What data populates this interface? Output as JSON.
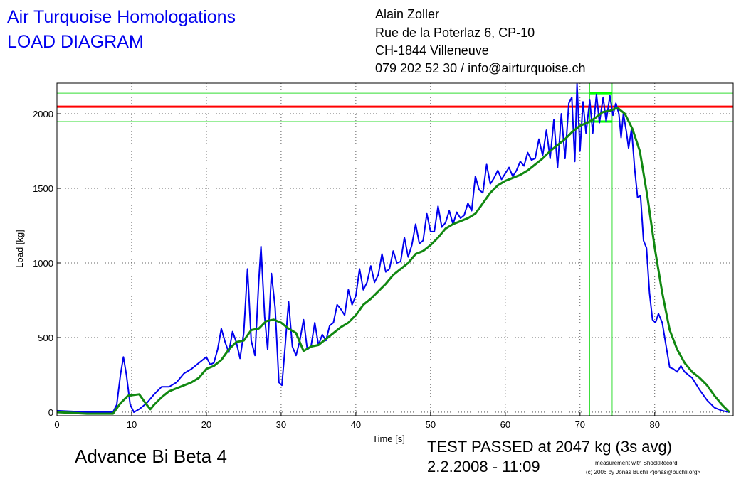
{
  "header": {
    "title": "Air Turquoise Homologations",
    "subtitle": "LOAD DIAGRAM",
    "address": [
      "Alain Zoller",
      "Rue de la Poterlaz 6, CP-10",
      "CH-1844 Villeneuve",
      "079 202 52 30 / info@airturquoise.ch"
    ]
  },
  "footer": {
    "glider": "Advance Bi Beta 4",
    "result": "TEST PASSED at 2047 kg (3s avg)",
    "date": "2.2.2008 - 11:09",
    "credit": [
      "measurement with ShockRecord",
      "(c) 2006 by Jonas Buchli <jonas@buchli.org>"
    ]
  },
  "chart_data": {
    "type": "line",
    "x_label": "Time [s]",
    "y_label": "Load [kg]",
    "xlim": [
      0,
      90.5
    ],
    "ylim": [
      -24,
      2205
    ],
    "xticks": [
      0,
      10,
      20,
      30,
      40,
      50,
      60,
      70,
      80
    ],
    "yticks": [
      0,
      500,
      1000,
      1500,
      2000
    ],
    "grid": true,
    "reference_lines": {
      "horizontal": [
        {
          "value": 2047,
          "color": "#ff0000"
        },
        {
          "value": 2138,
          "color": "#33dd33"
        },
        {
          "value": 1948,
          "color": "#33dd33"
        }
      ],
      "vertical": [
        {
          "value": 71.3,
          "color": "#33dd33"
        },
        {
          "value": 74.3,
          "color": "#33dd33"
        }
      ]
    },
    "series": [
      {
        "color": "#0000ee",
        "x": [
          0,
          2,
          4,
          6,
          7.5,
          8,
          8.5,
          8.9,
          9.3,
          9.8,
          10.3,
          11,
          12,
          13,
          14,
          15,
          16,
          17,
          18,
          19,
          20,
          20.5,
          21,
          21.5,
          22,
          22.5,
          23,
          23.5,
          24,
          24.5,
          25,
          25.5,
          26,
          26.5,
          27,
          27.3,
          27.8,
          28.2,
          28.7,
          29.2,
          29.7,
          30.1,
          30.5,
          31,
          31.5,
          32,
          32.5,
          33,
          33.5,
          34,
          34.5,
          35,
          35.5,
          36,
          36.5,
          37,
          37.5,
          38,
          38.5,
          39,
          39.5,
          40,
          40.5,
          41,
          41.5,
          42,
          42.5,
          43,
          43.5,
          44,
          44.5,
          45,
          45.5,
          46,
          46.5,
          47,
          47.5,
          48,
          48.5,
          49,
          49.5,
          50,
          50.5,
          51,
          51.5,
          52,
          52.5,
          53,
          53.5,
          54,
          54.5,
          55,
          55.5,
          56,
          56.5,
          57,
          57.5,
          58,
          58.5,
          59,
          59.5,
          60,
          60.5,
          61,
          61.5,
          62,
          62.5,
          63,
          63.5,
          64,
          64.5,
          65,
          65.5,
          66,
          66.5,
          67,
          67.5,
          68,
          68.5,
          68.9,
          69.3,
          69.6,
          70,
          70.4,
          70.8,
          71.3,
          71.7,
          72.2,
          72.6,
          73.1,
          73.5,
          74,
          74.4,
          74.8,
          75.2,
          75.5,
          75.8,
          76.2,
          76.5,
          76.9,
          77.3,
          77.7,
          78.1,
          78.5,
          78.9,
          79.3,
          79.7,
          80.1,
          80.5,
          81,
          81.5,
          82,
          82.5,
          83,
          83.5,
          84,
          85,
          86,
          87,
          88,
          89,
          90
        ],
        "values": [
          10,
          5,
          0,
          0,
          0,
          50,
          250,
          370,
          250,
          50,
          0,
          20,
          60,
          120,
          170,
          170,
          200,
          260,
          290,
          330,
          370,
          320,
          330,
          420,
          560,
          470,
          400,
          540,
          470,
          360,
          530,
          960,
          480,
          380,
          870,
          1110,
          640,
          420,
          930,
          700,
          200,
          180,
          420,
          740,
          440,
          380,
          480,
          620,
          420,
          440,
          600,
          450,
          520,
          480,
          580,
          600,
          720,
          690,
          650,
          820,
          720,
          780,
          960,
          820,
          870,
          980,
          870,
          920,
          1060,
          940,
          960,
          1080,
          1000,
          1010,
          1170,
          1040,
          1120,
          1260,
          1130,
          1150,
          1330,
          1210,
          1210,
          1380,
          1240,
          1270,
          1350,
          1260,
          1340,
          1300,
          1320,
          1400,
          1350,
          1580,
          1490,
          1470,
          1660,
          1530,
          1570,
          1620,
          1560,
          1600,
          1640,
          1580,
          1620,
          1680,
          1650,
          1740,
          1690,
          1700,
          1830,
          1720,
          1890,
          1700,
          1960,
          1640,
          2000,
          1700,
          2070,
          2110,
          1680,
          2200,
          1750,
          2080,
          1870,
          2090,
          1870,
          2130,
          1940,
          2110,
          1950,
          2120,
          1990,
          2070,
          2000,
          1840,
          2000,
          1880,
          1770,
          1900,
          1640,
          1440,
          1450,
          1150,
          1100,
          800,
          620,
          600,
          660,
          600,
          450,
          300,
          290,
          270,
          310,
          270,
          230,
          150,
          80,
          30,
          10,
          0
        ]
      },
      {
        "color": "#118811",
        "x": [
          0,
          2,
          4,
          6,
          7.5,
          8.5,
          9.5,
          11,
          12,
          12.5,
          13,
          14,
          15,
          16,
          17,
          18,
          19,
          20,
          21,
          22,
          23,
          24,
          25,
          26,
          27,
          28,
          29,
          30,
          31,
          32,
          33,
          34,
          35,
          36,
          37,
          38,
          39,
          40,
          41,
          42,
          43,
          44,
          45,
          46,
          47,
          48,
          49,
          50,
          51,
          52,
          53,
          54,
          55,
          56,
          57,
          58,
          59,
          60,
          61,
          62,
          63,
          64,
          65,
          66,
          67,
          68,
          69,
          70,
          71,
          72,
          73,
          74,
          75,
          76,
          77,
          78,
          79,
          80,
          81,
          82,
          83,
          84,
          85,
          86,
          87,
          88,
          89,
          90
        ],
        "values": [
          0,
          -5,
          -10,
          -10,
          -10,
          60,
          110,
          120,
          50,
          20,
          50,
          100,
          140,
          160,
          180,
          200,
          230,
          290,
          310,
          350,
          420,
          470,
          480,
          550,
          560,
          610,
          620,
          600,
          560,
          530,
          410,
          440,
          450,
          490,
          530,
          570,
          600,
          650,
          720,
          760,
          810,
          860,
          920,
          960,
          1000,
          1060,
          1080,
          1120,
          1170,
          1230,
          1260,
          1280,
          1300,
          1330,
          1400,
          1470,
          1520,
          1550,
          1570,
          1590,
          1620,
          1660,
          1700,
          1750,
          1790,
          1830,
          1880,
          1920,
          1940,
          1970,
          2010,
          2020,
          2040,
          2000,
          1900,
          1750,
          1450,
          1100,
          800,
          550,
          420,
          330,
          270,
          230,
          180,
          110,
          50,
          0
        ]
      }
    ]
  }
}
